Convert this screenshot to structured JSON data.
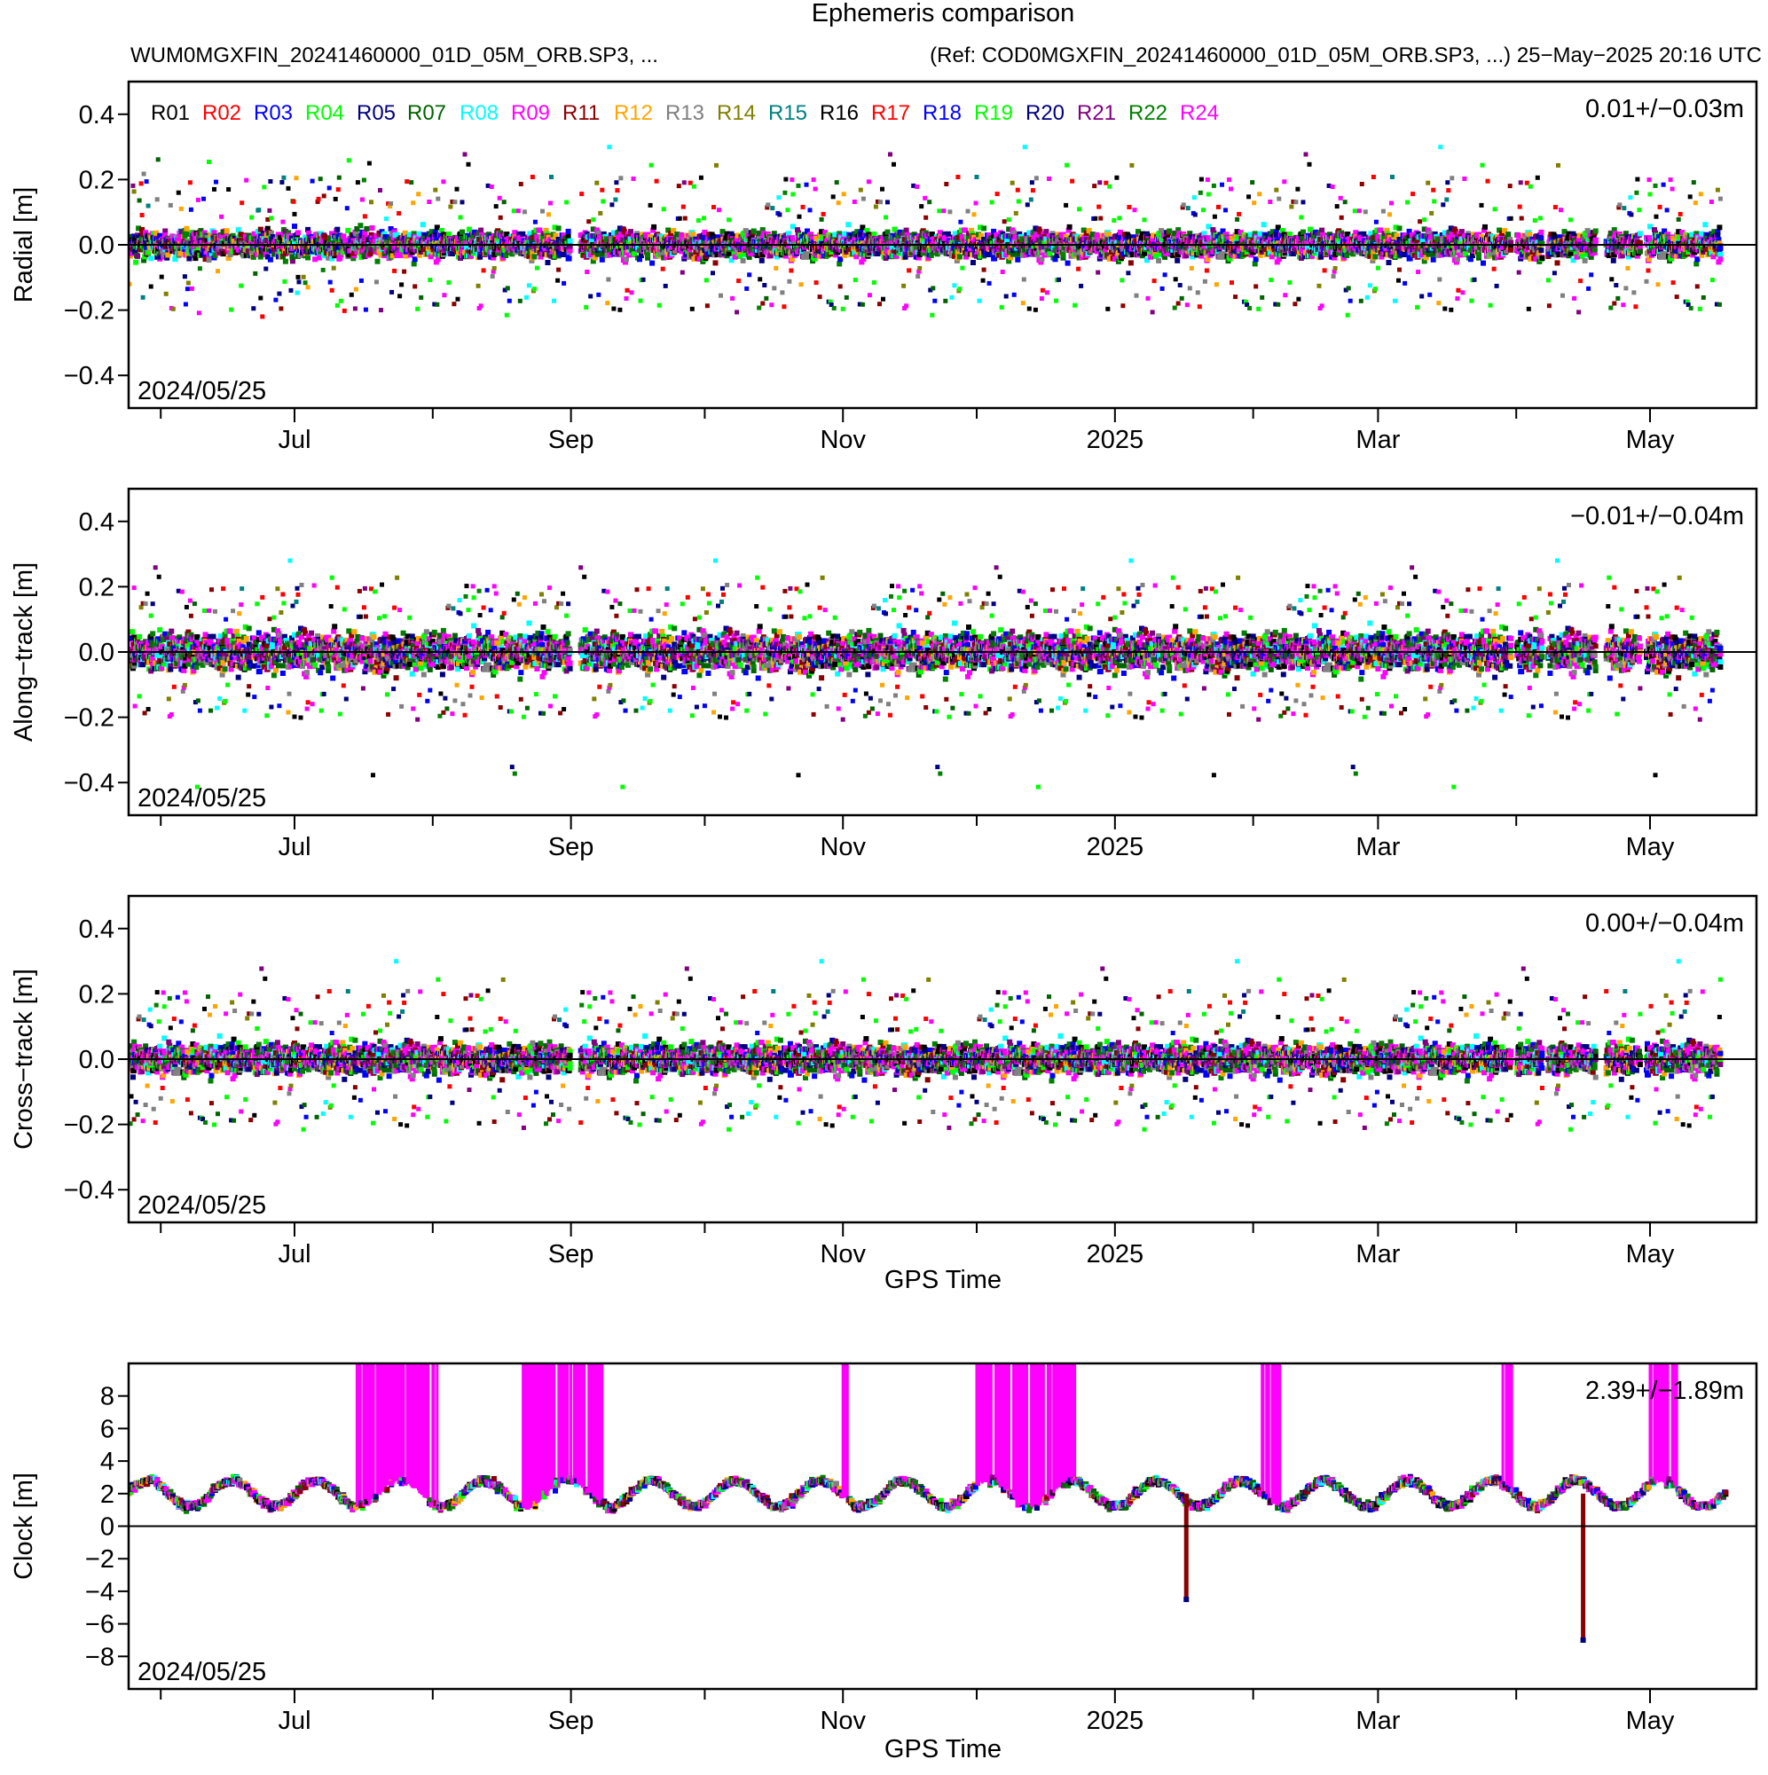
{
  "title": "Ephemeris comparison",
  "subtitle_left": "WUM0MGXFIN_20241460000_01D_05M_ORB.SP3, ...",
  "subtitle_right": "(Ref: COD0MGXFIN_20241460000_01D_05M_ORB.SP3, ...) 25−May−2025 20:16 UTC",
  "legend": [
    {
      "label": "R01",
      "color": "#000000"
    },
    {
      "label": "R02",
      "color": "#ff0000"
    },
    {
      "label": "R03",
      "color": "#0000ff"
    },
    {
      "label": "R04",
      "color": "#00ff00"
    },
    {
      "label": "R05",
      "color": "#000080"
    },
    {
      "label": "R07",
      "color": "#006400"
    },
    {
      "label": "R08",
      "color": "#00ffff"
    },
    {
      "label": "R09",
      "color": "#ff00ff"
    },
    {
      "label": "R11",
      "color": "#8b0000"
    },
    {
      "label": "R12",
      "color": "#ffa500"
    },
    {
      "label": "R13",
      "color": "#808080"
    },
    {
      "label": "R14",
      "color": "#808000"
    },
    {
      "label": "R15",
      "color": "#008080"
    },
    {
      "label": "R16",
      "color": "#000000"
    },
    {
      "label": "R17",
      "color": "#ff0000"
    },
    {
      "label": "R18",
      "color": "#0000ff"
    },
    {
      "label": "R19",
      "color": "#00ff00"
    },
    {
      "label": "R20",
      "color": "#000080"
    },
    {
      "label": "R21",
      "color": "#800080"
    },
    {
      "label": "R22",
      "color": "#008000"
    },
    {
      "label": "R24",
      "color": "#ff00ff"
    }
  ],
  "chart_data": [
    {
      "type": "scatter",
      "ylabel": "Radial [m]",
      "xlabel": "",
      "stat": "0.01+/−0.03m",
      "start_date": "2024/05/25",
      "x_range": [
        "2024-05-25",
        "2025-05-25"
      ],
      "ylim": [
        -0.5,
        0.5
      ],
      "yticks": [
        0.4,
        0.2,
        0.0,
        -0.2,
        -0.4
      ],
      "ytick_labels": [
        "0.4",
        "0.2",
        "0.0",
        "−0.2",
        "−0.4"
      ],
      "xticks": [
        "Jul",
        "Sep",
        "Nov",
        "2025",
        "Mar",
        "May"
      ],
      "zero_line": true,
      "series_envelope": {
        "upper": 0.07,
        "lower": -0.07,
        "outliers_max": 0.3,
        "outliers_min": -0.25
      },
      "gaps": [
        [
          "2024-09-01",
          "2024-09-03"
        ],
        [
          "2025-03-31",
          "2025-04-01"
        ],
        [
          "2025-04-07",
          "2025-04-08"
        ],
        [
          "2025-04-19",
          "2025-04-21"
        ],
        [
          "2025-04-29",
          "2025-04-30"
        ],
        [
          "2025-05-17",
          "2025-05-18"
        ]
      ]
    },
    {
      "type": "scatter",
      "ylabel": "Along−track [m]",
      "xlabel": "",
      "stat": "−0.01+/−0.04m",
      "start_date": "2024/05/25",
      "x_range": [
        "2024-05-25",
        "2025-05-25"
      ],
      "ylim": [
        -0.5,
        0.5
      ],
      "yticks": [
        0.4,
        0.2,
        0.0,
        -0.2,
        -0.4
      ],
      "ytick_labels": [
        "0.4",
        "0.2",
        "0.0",
        "−0.2",
        "−0.4"
      ],
      "xticks": [
        "Jul",
        "Sep",
        "Nov",
        "2025",
        "Mar",
        "May"
      ],
      "zero_line": true,
      "series_envelope": {
        "upper": 0.1,
        "lower": -0.1,
        "outliers_max": 0.28,
        "outliers_min": -0.48
      },
      "gaps": [
        [
          "2024-09-01",
          "2024-09-03"
        ],
        [
          "2025-03-31",
          "2025-04-01"
        ],
        [
          "2025-04-07",
          "2025-04-08"
        ],
        [
          "2025-04-19",
          "2025-04-21"
        ],
        [
          "2025-04-29",
          "2025-04-30"
        ],
        [
          "2025-05-17",
          "2025-05-18"
        ]
      ]
    },
    {
      "type": "scatter",
      "ylabel": "Cross−track [m]",
      "xlabel": "GPS Time",
      "stat": "0.00+/−0.04m",
      "start_date": "2024/05/25",
      "x_range": [
        "2024-05-25",
        "2025-05-25"
      ],
      "ylim": [
        -0.5,
        0.5
      ],
      "yticks": [
        0.4,
        0.2,
        0.0,
        -0.2,
        -0.4
      ],
      "ytick_labels": [
        "0.4",
        "0.2",
        "0.0",
        "−0.2",
        "−0.4"
      ],
      "xticks": [
        "Jul",
        "Sep",
        "Nov",
        "2025",
        "Mar",
        "May"
      ],
      "zero_line": true,
      "series_envelope": {
        "upper": 0.08,
        "lower": -0.08,
        "outliers_max": 0.3,
        "outliers_min": -0.25
      },
      "gaps": [
        [
          "2024-09-01",
          "2024-09-03"
        ],
        [
          "2025-03-31",
          "2025-04-01"
        ],
        [
          "2025-04-07",
          "2025-04-08"
        ],
        [
          "2025-04-19",
          "2025-04-21"
        ],
        [
          "2025-04-29",
          "2025-04-30"
        ],
        [
          "2025-05-17",
          "2025-05-18"
        ]
      ]
    },
    {
      "type": "scatter",
      "ylabel": "Clock [m]",
      "xlabel": "GPS Time",
      "stat": "2.39+/−1.89m",
      "start_date": "2024/05/25",
      "x_range": [
        "2024-05-25",
        "2025-05-25"
      ],
      "ylim": [
        -10,
        10
      ],
      "yticks": [
        8,
        6,
        4,
        2,
        0,
        -2,
        -4,
        -6,
        -8
      ],
      "ytick_labels": [
        "8",
        "6",
        "4",
        "2",
        "0",
        "−2",
        "−4",
        "−6",
        "−8"
      ],
      "xticks": [
        "Jul",
        "Sep",
        "Nov",
        "2025",
        "Mar",
        "May"
      ],
      "zero_line": true,
      "baseline_level": 2.0,
      "spike_intervals": [
        [
          "2024-07-15",
          "2024-08-02"
        ],
        [
          "2024-08-21",
          "2024-09-08"
        ],
        [
          "2024-11-01",
          "2024-11-02"
        ],
        [
          "2024-12-01",
          "2024-12-23"
        ],
        [
          "2025-02-03",
          "2025-02-07"
        ],
        [
          "2025-03-29",
          "2025-03-31"
        ],
        [
          "2025-05-01",
          "2025-05-07"
        ]
      ],
      "negative_spikes": [
        {
          "date": "2025-01-17",
          "min": -4.5
        },
        {
          "date": "2025-04-16",
          "min": -7.0
        }
      ]
    }
  ]
}
